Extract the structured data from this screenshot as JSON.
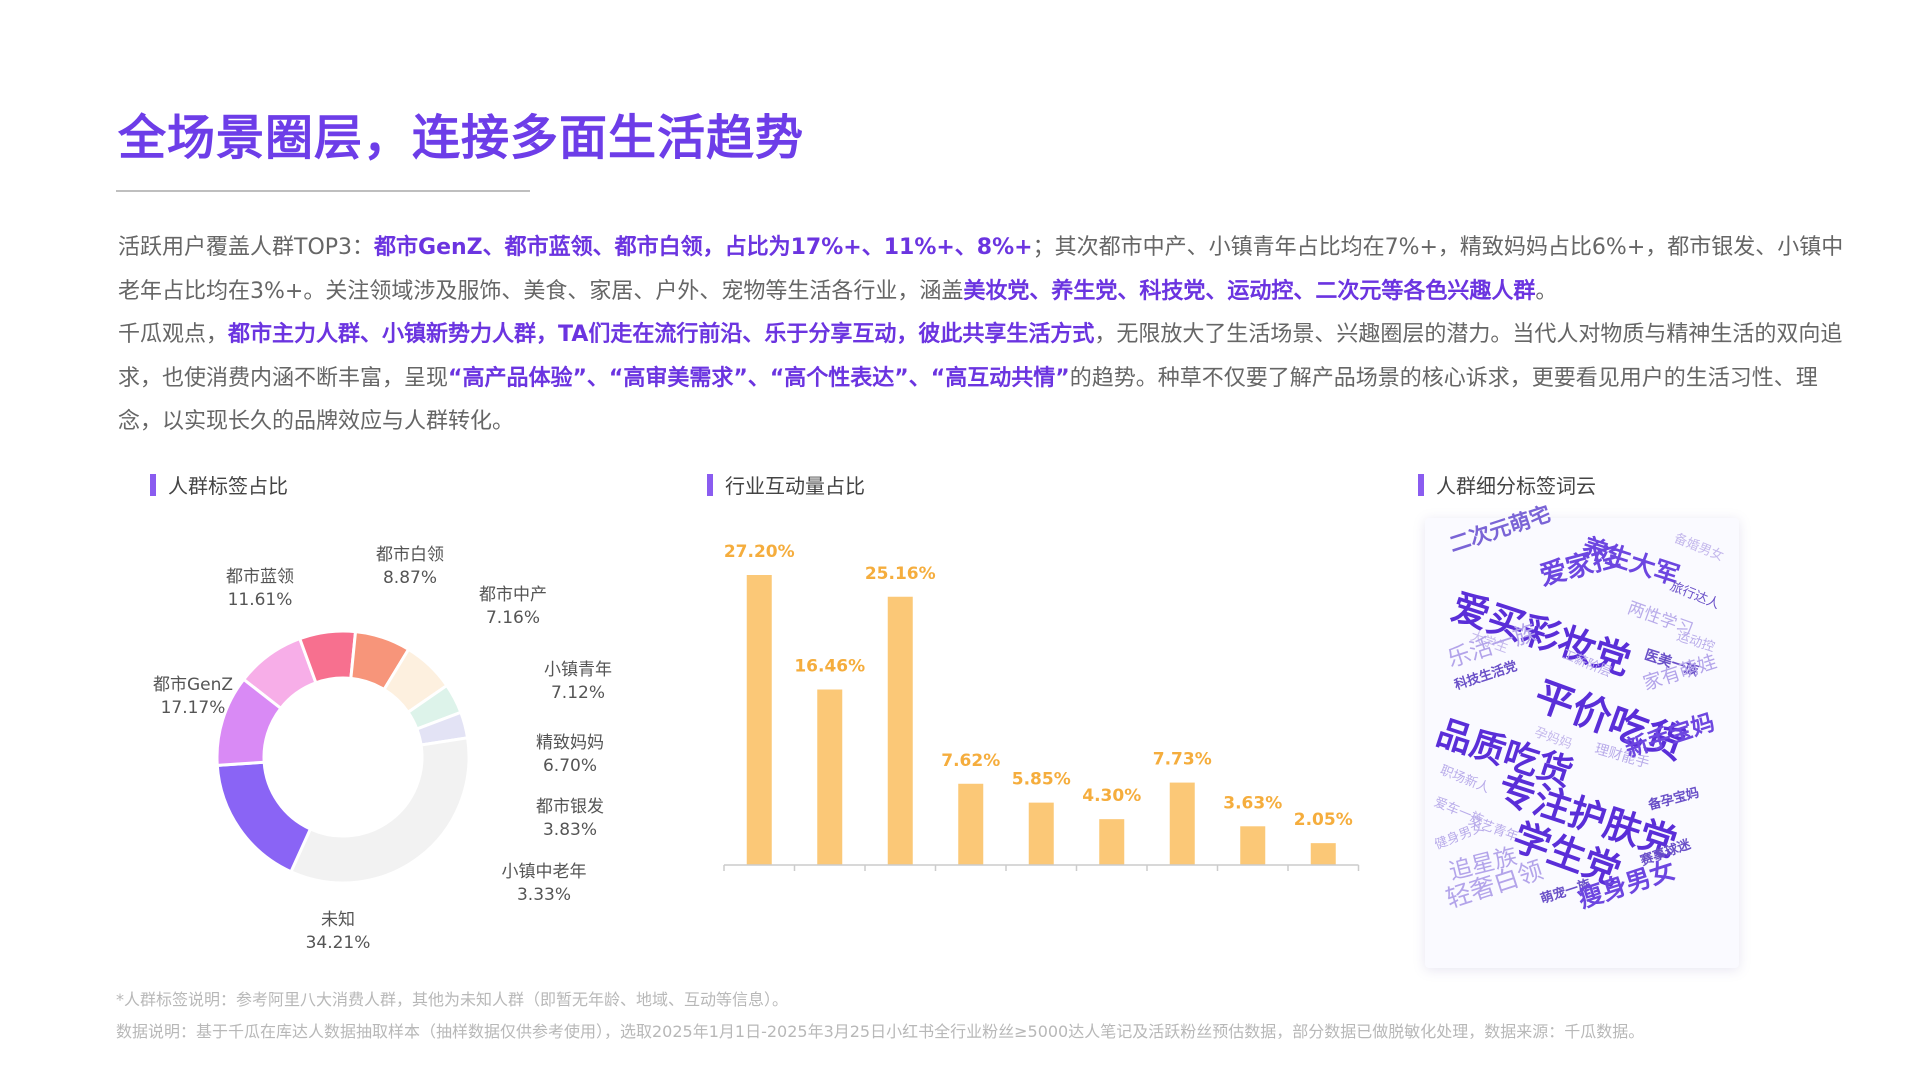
{
  "title": "全场景圈层，连接多面生活趋势",
  "intro": {
    "p1": [
      {
        "t": "活跃用户覆盖人群TOP3：",
        "h": false
      },
      {
        "t": "都市GenZ、都市蓝领、都市白领，占比为17%+、11%+、8%+",
        "h": true
      },
      {
        "t": "；其次都市中产、小镇青年占比均在7%+，精致妈妈占比6%+，都市银发、小镇中老年占比均在3%+。关注领域涉及服饰、美食、家居、户外、宠物等生活各行业，涵盖",
        "h": false
      },
      {
        "t": "美妆党、养生党、科技党、运动控、二次元等各色兴趣人群",
        "h": true
      },
      {
        "t": "。",
        "h": false
      }
    ],
    "p2": [
      {
        "t": "千瓜观点，",
        "h": false
      },
      {
        "t": "都市主力人群、小镇新势力人群，TA们走在流行前沿、乐于分享互动，彼此共享生活方式",
        "h": true
      },
      {
        "t": "，无限放大了生活场景、兴趣圈层的潜力。当代人对物质与精神生活的双向追求，也使消费内涵不断丰富，呈现",
        "h": false
      },
      {
        "t": "“高产品体验”、“高审美需求”、“高个性表达”、“高互动共情”",
        "h": true
      },
      {
        "t": "的趋势。种草不仅要了解产品场景的核心诉求，更要看见用户的生活习性、理念，以实现长久的品牌效应与人群转化。",
        "h": false
      }
    ]
  },
  "sections": {
    "pie_title": "人群标签占比",
    "bar_title": "行业互动量占比",
    "cloud_title": "人群细分标签词云"
  },
  "chart_data": [
    {
      "type": "pie",
      "title": "人群标签占比",
      "labels": [
        "都市白领",
        "都市中产",
        "小镇青年",
        "精致妈妈",
        "都市银发",
        "小镇中老年",
        "未知",
        "都市GenZ",
        "都市蓝领"
      ],
      "values": [
        8.87,
        7.16,
        7.12,
        6.7,
        3.83,
        3.33,
        34.21,
        17.17,
        11.61
      ],
      "value_labels": [
        "8.87%",
        "7.16%",
        "7.12%",
        "6.70%",
        "3.83%",
        "3.33%",
        "34.21%",
        "17.17%",
        "11.61%"
      ],
      "colors": [
        "#f7aee8",
        "#f7708f",
        "#f7957a",
        "#fdf0df",
        "#ddf3ea",
        "#e3e3f5",
        "#f2f2f2",
        "#8a64f5",
        "#d98af5"
      ]
    },
    {
      "type": "bar",
      "title": "行业互动量占比",
      "categories": [
        "",
        "",
        "",
        "",
        "",
        "",
        "",
        "",
        ""
      ],
      "values": [
        27.2,
        16.46,
        25.16,
        7.62,
        5.85,
        4.3,
        7.73,
        3.63,
        2.05
      ],
      "value_labels": [
        "27.20%",
        "16.46%",
        "25.16%",
        "7.62%",
        "5.85%",
        "4.30%",
        "7.73%",
        "3.63%",
        "2.05%"
      ],
      "ylim": [
        0,
        30
      ],
      "bar_color": "#fbc877",
      "label_color": "#f5ad3d"
    }
  ],
  "wordcloud": [
    {
      "t": "二次元萌宅",
      "c": "#7a64d6"
    },
    {
      "t": "养生大军",
      "c": "#6d46e0"
    },
    {
      "t": "备婚男女",
      "c": "#c4b8ec"
    },
    {
      "t": "爱家控",
      "c": "#6d46e0"
    },
    {
      "t": "旅行达人",
      "c": "#6a50c8"
    },
    {
      "t": "爱买彩妆党",
      "c": "#5a2ed8"
    },
    {
      "t": "两性学习",
      "c": "#b9acea"
    },
    {
      "t": "运动控",
      "c": "#b9acea"
    },
    {
      "t": "大学生",
      "c": "#c4b8ec"
    },
    {
      "t": "乐活一族",
      "c": "#b3a4ea"
    },
    {
      "t": "工薪阶层",
      "c": "#b9acea"
    },
    {
      "t": "医美一族",
      "c": "#6a50c8"
    },
    {
      "t": "科技生活党",
      "c": "#6a50c8"
    },
    {
      "t": "家有萌娃",
      "c": "#b3a4ea"
    },
    {
      "t": "平价吃货",
      "c": "#5a2ed8"
    },
    {
      "t": "孕妈妈",
      "c": "#c4b8ec"
    },
    {
      "t": "品质吃货",
      "c": "#5a2ed8"
    },
    {
      "t": "理财能手",
      "c": "#b9acea"
    },
    {
      "t": "新手宝妈",
      "c": "#6d46e0"
    },
    {
      "t": "职场新人",
      "c": "#b9acea"
    },
    {
      "t": "专注护肤党",
      "c": "#5a2ed8"
    },
    {
      "t": "爱车一族",
      "c": "#b9acea"
    },
    {
      "t": "文艺青年",
      "c": "#b9acea"
    },
    {
      "t": "备孕宝妈",
      "c": "#6a50c8"
    },
    {
      "t": "健身男女",
      "c": "#b9acea"
    },
    {
      "t": "学生党",
      "c": "#5a2ed8"
    },
    {
      "t": "赛事球迷",
      "c": "#6a50c8"
    },
    {
      "t": "追星族",
      "c": "#b3a4ea"
    },
    {
      "t": "轻奢白领",
      "c": "#b3a4ea"
    },
    {
      "t": "萌宠一族",
      "c": "#6a50c8"
    },
    {
      "t": "瘦身男女",
      "c": "#6d46e0"
    }
  ],
  "footnotes": {
    "note1": "*人群标签说明：参考阿里八大消费人群，其他为未知人群（即暂无年龄、地域、互动等信息）。",
    "note2": "数据说明：基于千瓜在库达人数据抽取样本（抽样数据仅供参考使用），选取2025年1月1日-2025年3月25日小红书全行业粉丝≥5000达人笔记及活跃粉丝预估数据，部分数据已做脱敏化处理，数据来源：千瓜数据。"
  }
}
